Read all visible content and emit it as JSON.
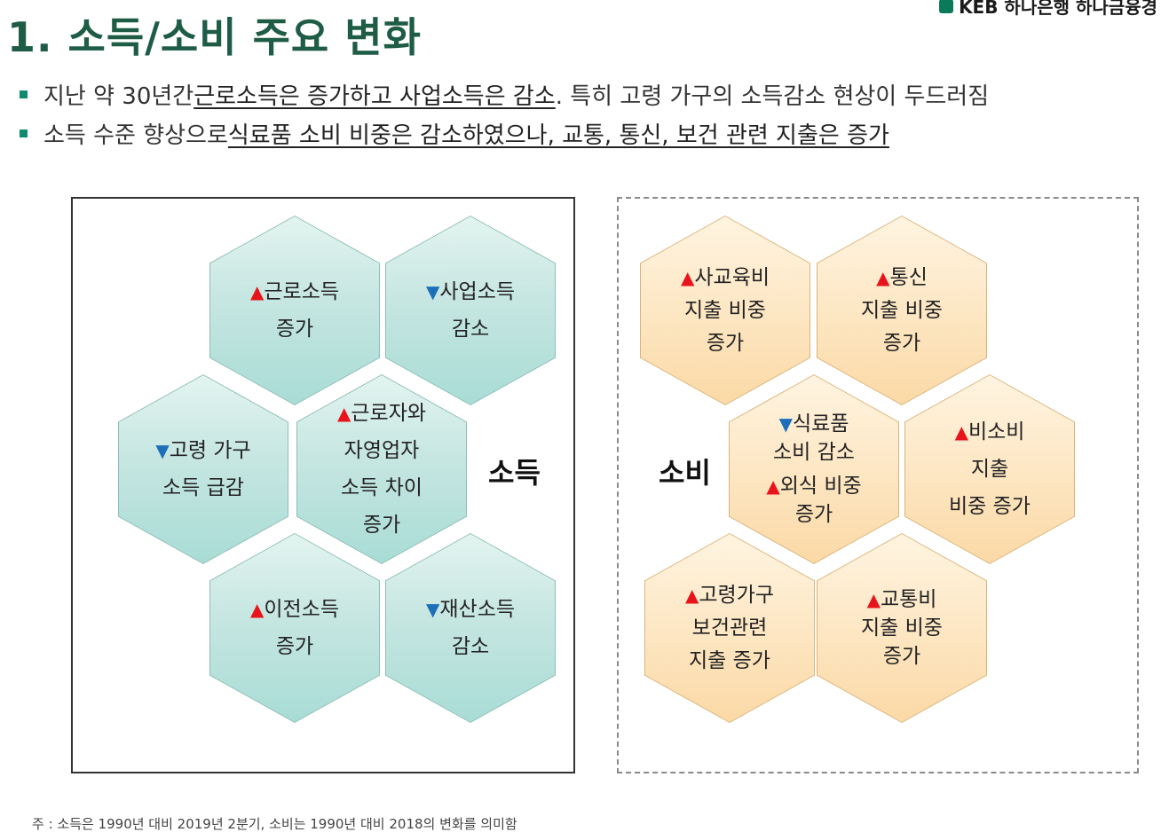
{
  "header": {
    "logo_text": "KEB 하나은행 하나금융경",
    "title": "1. 소득/소비 주요 변화"
  },
  "bullets": [
    {
      "pre": "지난 약 30년간 ",
      "underlined": "근로소득은 증가하고 사업소득은 감소",
      "post": ". 특히 고령 가구의 소득감소 현상이 두드러짐"
    },
    {
      "pre": "소득 수준 향상으로 ",
      "underlined": "식료품 소비 비중은 감소하였으나, 교통, 통신, 보건 관련 지출은 증가",
      "post": ""
    }
  ],
  "income": {
    "label": "소득",
    "hexes": [
      {
        "arrow": "▲",
        "dir": "up",
        "lines": [
          "근로소득",
          "증가"
        ]
      },
      {
        "arrow": "▼",
        "dir": "down",
        "lines": [
          "사업소득",
          "감소"
        ]
      },
      {
        "arrow": "▼",
        "dir": "down",
        "lines": [
          "고령 가구",
          "소득 급감"
        ]
      },
      {
        "arrow": "▲",
        "dir": "up",
        "lines": [
          "근로자와",
          "자영업자",
          "소득 차이",
          "증가"
        ]
      },
      {
        "arrow": "▲",
        "dir": "up",
        "lines": [
          "이전소득",
          "증가"
        ]
      },
      {
        "arrow": "▼",
        "dir": "down",
        "lines": [
          "재산소득",
          "감소"
        ]
      }
    ]
  },
  "consumption": {
    "label": "소비",
    "hexes": [
      {
        "arrow": "▲",
        "dir": "up",
        "lines": [
          "사교육비",
          "지출 비중",
          "증가"
        ]
      },
      {
        "arrow": "▲",
        "dir": "up",
        "lines": [
          "통신",
          "지출 비중",
          "증가"
        ]
      },
      {
        "arrow": "▼",
        "dir": "down",
        "lines": [
          "식료품",
          "소비 감소"
        ],
        "arrow2": "▲",
        "lines2": [
          "외식 비중",
          "증가"
        ]
      },
      {
        "arrow": "▲",
        "dir": "up",
        "lines": [
          "비소비",
          "지출",
          "비중 증가"
        ]
      },
      {
        "arrow": "▲",
        "dir": "up",
        "lines": [
          "고령가구",
          "보건관련",
          "지출 증가"
        ]
      },
      {
        "arrow": "▲",
        "dir": "up",
        "lines": [
          "교통비",
          "지출 비중",
          "증가"
        ]
      }
    ]
  },
  "footnote": "주 : 소득은 1990년 대비 2019년 2분기, 소비는 1990년 대비 2018의 변화를 의미함"
}
